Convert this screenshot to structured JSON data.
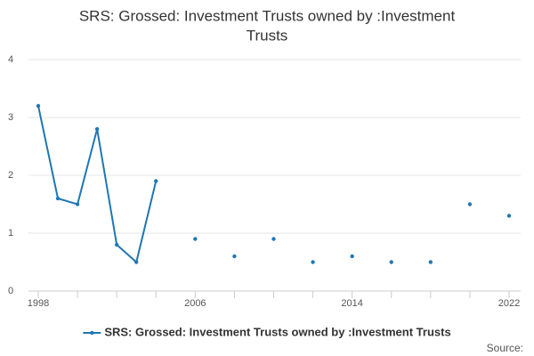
{
  "chart_data": {
    "type": "line",
    "title": [
      "SRS: Grossed: Investment Trusts owned by :Investment",
      "Trusts"
    ],
    "x": [
      1998,
      1999,
      2000,
      2001,
      2002,
      2003,
      2004,
      2005,
      2006,
      2007,
      2008,
      2009,
      2010,
      2011,
      2012,
      2013,
      2014,
      2015,
      2016,
      2017,
      2018,
      2019,
      2020,
      2021,
      2022
    ],
    "series": [
      {
        "name": "SRS: Grossed: Investment Trusts owned by :Investment Trusts",
        "color": "#1f77b4",
        "values": [
          3.2,
          1.6,
          1.5,
          2.8,
          0.8,
          0.5,
          1.9,
          null,
          0.9,
          null,
          0.6,
          null,
          0.9,
          null,
          0.5,
          null,
          0.6,
          null,
          0.5,
          null,
          0.5,
          null,
          1.5,
          null,
          1.3
        ]
      }
    ],
    "xlim": [
      1998,
      2022
    ],
    "xticks": [
      1998,
      2006,
      2014,
      2022
    ],
    "xminor_ticks": [
      2000,
      2002,
      2004,
      2008,
      2010,
      2012,
      2016,
      2018,
      2020
    ],
    "ylim": [
      0,
      4
    ],
    "yticks": [
      0,
      1,
      2,
      3,
      4
    ],
    "grid": true,
    "source": "Source:"
  }
}
